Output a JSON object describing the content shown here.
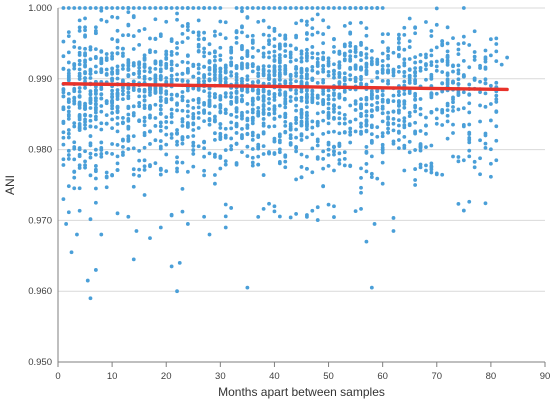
{
  "chart_data": {
    "type": "scatter",
    "title": "",
    "xlabel": "Months apart between samples",
    "ylabel": "ANI",
    "xlim": [
      0,
      90
    ],
    "ylim": [
      0.95,
      1.0
    ],
    "x_ticks": [
      0,
      10,
      20,
      30,
      40,
      50,
      60,
      70,
      80,
      90
    ],
    "y_ticks": [
      0.95,
      0.96,
      0.97,
      0.98,
      0.99,
      1.0
    ],
    "x_tick_labels": [
      "0",
      "10",
      "20",
      "30",
      "40",
      "50",
      "60",
      "70",
      "80",
      "90"
    ],
    "y_tick_labels": [
      "0.950",
      "0.960",
      "0.970",
      "0.980",
      "0.990",
      "1.000"
    ],
    "grid": {
      "horizontal": true,
      "vertical": false
    },
    "colors": {
      "points": "#4a9fd8",
      "trendline": "#e8322a",
      "grid": "#d9d9d9",
      "axis": "#7f7f7f"
    },
    "series": [
      {
        "type": "scatter",
        "values": [
          {
            "x": 1.0,
            "y": 0.973
          },
          {
            "x": 1.5,
            "y": 0.9695
          },
          {
            "x": 2.5,
            "y": 0.9655
          },
          {
            "x": 3.5,
            "y": 0.968
          },
          {
            "x": 5.5,
            "y": 0.9615
          },
          {
            "x": 6.0,
            "y": 0.959
          },
          {
            "x": 7.0,
            "y": 0.963
          },
          {
            "x": 8.0,
            "y": 0.968
          },
          {
            "x": 11.0,
            "y": 0.971
          },
          {
            "x": 14.0,
            "y": 0.9645
          },
          {
            "x": 14.5,
            "y": 0.9685
          },
          {
            "x": 17.0,
            "y": 0.9675
          },
          {
            "x": 19.0,
            "y": 0.969
          },
          {
            "x": 21.0,
            "y": 0.9635
          },
          {
            "x": 22.0,
            "y": 0.96
          },
          {
            "x": 22.5,
            "y": 0.964
          },
          {
            "x": 24.0,
            "y": 0.9695
          },
          {
            "x": 28.0,
            "y": 0.968
          },
          {
            "x": 31.0,
            "y": 0.969
          },
          {
            "x": 35.0,
            "y": 0.9605
          },
          {
            "x": 37.0,
            "y": 0.9705
          },
          {
            "x": 40.0,
            "y": 0.972
          },
          {
            "x": 46.0,
            "y": 0.9705
          },
          {
            "x": 51.0,
            "y": 0.972
          },
          {
            "x": 57.0,
            "y": 0.967
          },
          {
            "x": 58.0,
            "y": 0.9605
          },
          {
            "x": 58.5,
            "y": 0.9695
          },
          {
            "x": 62.0,
            "y": 0.9685
          },
          {
            "x": 66.0,
            "y": 0.975
          },
          {
            "x": 70.0,
            "y": 0.9765
          },
          {
            "x": 77.0,
            "y": 0.9775
          },
          {
            "x": 80.0,
            "y": 0.978
          },
          {
            "x": 81.0,
            "y": 0.9785
          },
          {
            "x": 82.0,
            "y": 0.992
          },
          {
            "x": 83.0,
            "y": 0.993
          }
        ],
        "dense_cloud": {
          "description_points_generated": true,
          "point_count": 2200,
          "x_range": [
            1,
            82
          ],
          "center_y": 0.989,
          "spread_y": 0.0045,
          "top_cap": 1.0,
          "density_drop_after_month": 60
        }
      },
      {
        "type": "line",
        "values": [
          {
            "x": 1,
            "y": 0.9893
          },
          {
            "x": 83,
            "y": 0.9885
          }
        ]
      }
    ]
  }
}
